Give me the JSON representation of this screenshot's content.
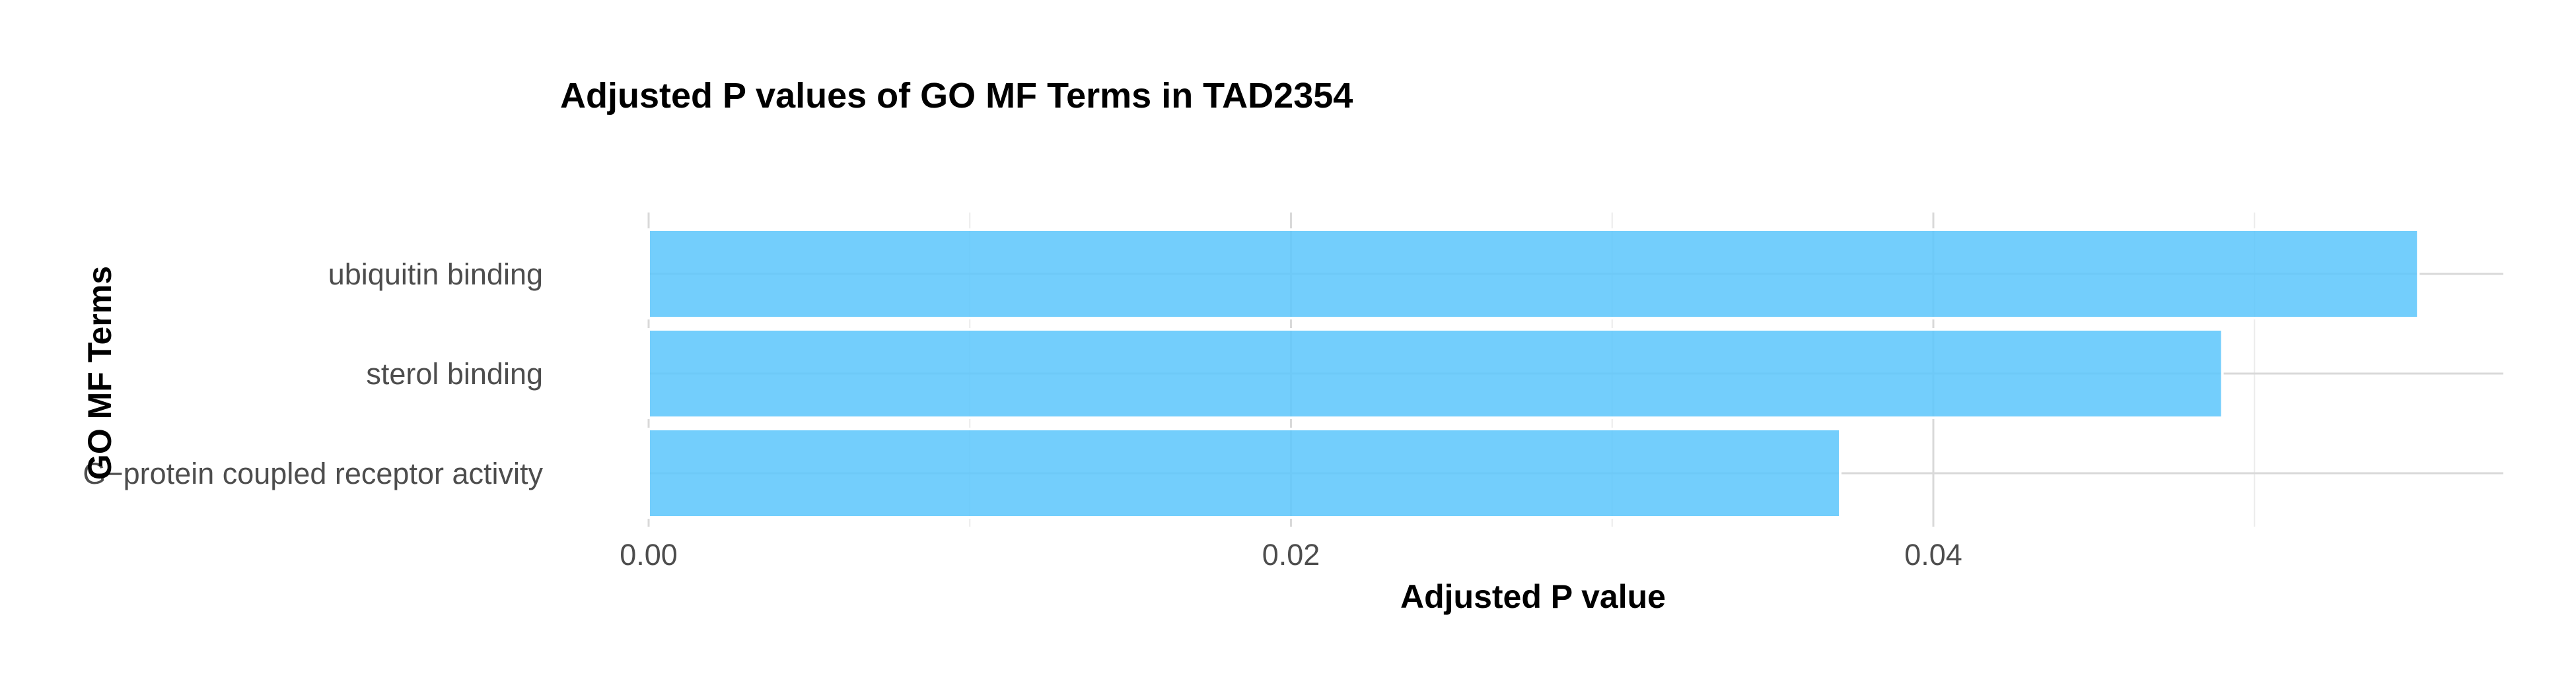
{
  "chart_data": {
    "type": "bar",
    "orientation": "horizontal",
    "title": "Adjusted P values of GO MF Terms in TAD2354",
    "xlabel": "Adjusted P value",
    "ylabel": "GO MF Terms",
    "categories": [
      "ubiquitin binding",
      "sterol binding",
      "G−protein coupled receptor activity"
    ],
    "values": [
      0.0551,
      0.049,
      0.0371
    ],
    "xlim": [
      0,
      0.0578
    ],
    "xticks": [
      0,
      0.02,
      0.04
    ],
    "xtick_labels": [
      "0.00",
      "0.02",
      "0.04"
    ],
    "grid": true,
    "legend": "none",
    "bar_color": "#5bc6fb"
  }
}
